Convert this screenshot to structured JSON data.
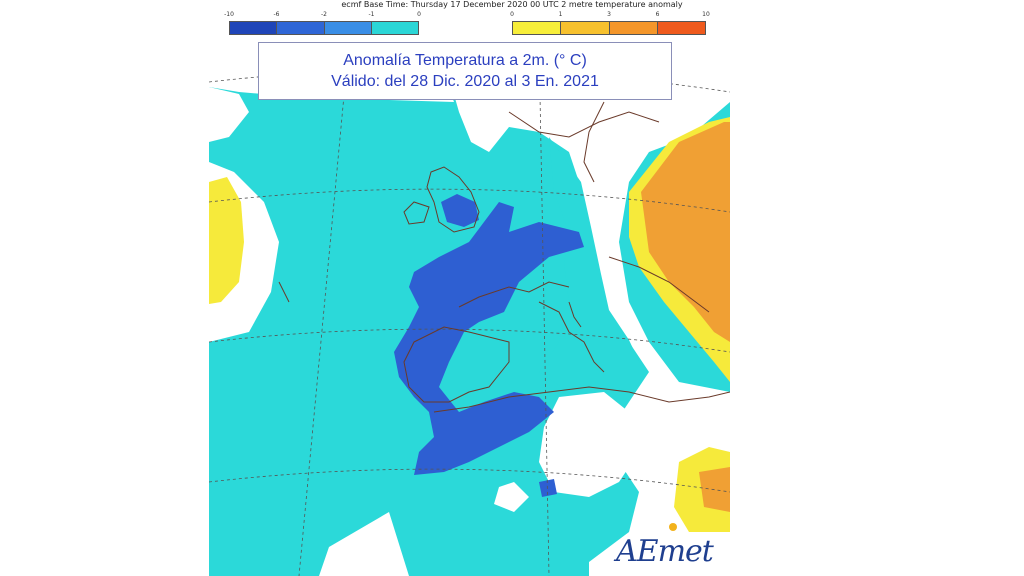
{
  "header": {
    "text": "ecmf  Base Time: Thursday 17 December 2020 00 UTC 2 metre temperature anomaly"
  },
  "legend": {
    "cold": {
      "ticks": [
        "-10",
        "-6",
        "-2",
        "-1",
        "0"
      ],
      "colors": [
        "#1f45b8",
        "#2f66d6",
        "#3a8ee6",
        "#2bd6d6"
      ]
    },
    "warm": {
      "ticks": [
        "0",
        "1",
        "3",
        "6",
        "10"
      ],
      "colors": [
        "#f7ee3a",
        "#f7c12e",
        "#f4962a",
        "#ef5a1d"
      ]
    }
  },
  "title": {
    "line1": "Anomalía Temperatura a 2m. (° C)",
    "line2": "Válido: del 28 Dic. 2020 al 3 En. 2021"
  },
  "logo": {
    "text": "AEmet"
  },
  "colors": {
    "cyan": "#2bd9d9",
    "blue": "#2e5fd2",
    "yellow": "#f6ea3b",
    "orange": "#f0a034",
    "white_land": "#ffffff",
    "coast": "#6a3a2a"
  }
}
